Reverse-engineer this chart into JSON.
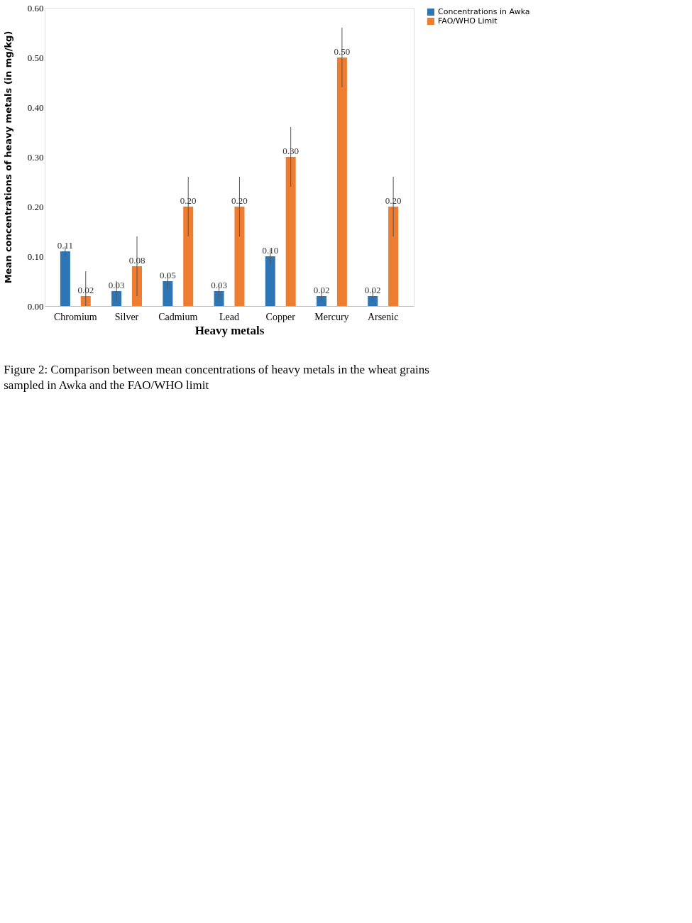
{
  "chart_data": {
    "type": "bar",
    "xlabel": "Heavy metals",
    "ylabel": "Mean concentrations of heavy metals (in mg/kg)",
    "categories": [
      "Chromium",
      "Silver",
      "Cadmium",
      "Lead",
      "Copper",
      "Mercury",
      "Arsenic"
    ],
    "series": [
      {
        "name": "Concentrations in Awka",
        "color": "#2e75b6",
        "values": [
          0.11,
          0.03,
          0.05,
          0.03,
          0.1,
          0.02,
          0.02
        ],
        "errors": [
          0.01,
          0.02,
          0.015,
          0.015,
          0.015,
          0.01,
          0.01
        ],
        "value_labels": [
          "0.11",
          "0.03",
          "0.05",
          "0.03",
          "0.10",
          "0.02",
          "0.02"
        ]
      },
      {
        "name": "FAO/WHO Limit",
        "color": "#ed7d31",
        "values": [
          0.02,
          0.08,
          0.2,
          0.2,
          0.3,
          0.5,
          0.2
        ],
        "errors": [
          [
            0.0,
            0.07
          ],
          0.06,
          0.06,
          0.06,
          0.06,
          0.06,
          0.06
        ],
        "value_labels": [
          "0.02",
          "0.08",
          "0.20",
          "0.20",
          "0.30",
          "0.50",
          "0.20"
        ]
      }
    ],
    "ylim": [
      0,
      0.6
    ],
    "yticks": [
      {
        "value": 0,
        "label": "0.00"
      },
      {
        "value": 0.1,
        "label": "0.10"
      },
      {
        "value": 0.2,
        "label": "0.20"
      },
      {
        "value": 0.3,
        "label": "0.30"
      },
      {
        "value": 0.4,
        "label": "0.40"
      },
      {
        "value": 0.5,
        "label": "0.50"
      },
      {
        "value": 0.6,
        "label": "0.60"
      }
    ],
    "grid": false,
    "legend": "right",
    "annotations": [
      "Figure 2: Comparison between mean concentrations of heavy metals in the wheat grains sampled in Awka and the FAO/WHO limit"
    ]
  }
}
